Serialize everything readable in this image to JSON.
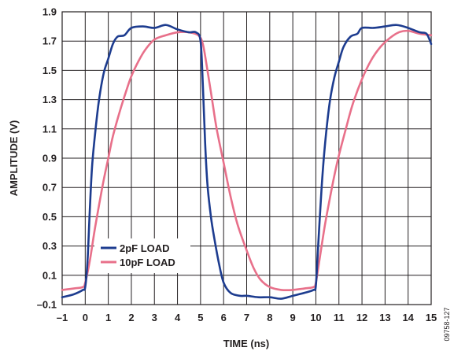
{
  "chart_data": {
    "type": "line",
    "xlabel": "TIME (ns)",
    "ylabel": "AMPLITUDE (V)",
    "xlim": [
      -1,
      15
    ],
    "ylim": [
      -0.1,
      1.9
    ],
    "xticks": [
      "–1",
      "0",
      "1",
      "2",
      "3",
      "4",
      "5",
      "6",
      "7",
      "8",
      "9",
      "10",
      "11",
      "12",
      "13",
      "14",
      "15"
    ],
    "yticks": [
      "–0.1",
      "0.1",
      "0.3",
      "0.5",
      "0.7",
      "0.9",
      "1.1",
      "1.3",
      "1.5",
      "1.7",
      "1.9"
    ],
    "grid": true,
    "legend_position": "bottom-left",
    "series": [
      {
        "name": "2pF LOAD",
        "color": "#1d3c8f",
        "points": [
          [
            -1,
            -0.05
          ],
          [
            -0.5,
            -0.03
          ],
          [
            -0.1,
            0
          ],
          [
            0,
            0.02
          ],
          [
            0.1,
            0.2
          ],
          [
            0.2,
            0.55
          ],
          [
            0.3,
            0.85
          ],
          [
            0.45,
            1.1
          ],
          [
            0.6,
            1.3
          ],
          [
            0.8,
            1.48
          ],
          [
            1,
            1.58
          ],
          [
            1.2,
            1.68
          ],
          [
            1.4,
            1.73
          ],
          [
            1.7,
            1.74
          ],
          [
            2,
            1.79
          ],
          [
            2.5,
            1.8
          ],
          [
            3,
            1.79
          ],
          [
            3.5,
            1.81
          ],
          [
            4,
            1.78
          ],
          [
            4.5,
            1.76
          ],
          [
            4.8,
            1.76
          ],
          [
            5,
            1.7
          ],
          [
            5.1,
            1.4
          ],
          [
            5.2,
            1.0
          ],
          [
            5.3,
            0.72
          ],
          [
            5.45,
            0.5
          ],
          [
            5.6,
            0.35
          ],
          [
            5.8,
            0.18
          ],
          [
            6,
            0.05
          ],
          [
            6.3,
            -0.02
          ],
          [
            6.7,
            -0.04
          ],
          [
            7,
            -0.04
          ],
          [
            7.5,
            -0.05
          ],
          [
            8,
            -0.05
          ],
          [
            8.5,
            -0.06
          ],
          [
            9,
            -0.04
          ],
          [
            9.5,
            -0.02
          ],
          [
            9.9,
            0
          ],
          [
            10,
            0.03
          ],
          [
            10.1,
            0.3
          ],
          [
            10.25,
            0.7
          ],
          [
            10.4,
            1.0
          ],
          [
            10.6,
            1.28
          ],
          [
            10.8,
            1.45
          ],
          [
            11,
            1.56
          ],
          [
            11.2,
            1.66
          ],
          [
            11.5,
            1.73
          ],
          [
            11.8,
            1.75
          ],
          [
            12,
            1.79
          ],
          [
            12.5,
            1.79
          ],
          [
            13,
            1.8
          ],
          [
            13.5,
            1.81
          ],
          [
            14,
            1.79
          ],
          [
            14.5,
            1.76
          ],
          [
            14.8,
            1.75
          ],
          [
            15,
            1.68
          ]
        ]
      },
      {
        "name": "10pF LOAD",
        "color": "#e8708a",
        "points": [
          [
            -1,
            0
          ],
          [
            -0.5,
            0.01
          ],
          [
            -0.1,
            0.02
          ],
          [
            0,
            0.05
          ],
          [
            0.2,
            0.2
          ],
          [
            0.4,
            0.4
          ],
          [
            0.6,
            0.58
          ],
          [
            0.8,
            0.75
          ],
          [
            1,
            0.9
          ],
          [
            1.2,
            1.05
          ],
          [
            1.5,
            1.22
          ],
          [
            1.8,
            1.37
          ],
          [
            2,
            1.46
          ],
          [
            2.3,
            1.56
          ],
          [
            2.6,
            1.64
          ],
          [
            3,
            1.71
          ],
          [
            3.5,
            1.74
          ],
          [
            4,
            1.76
          ],
          [
            4.5,
            1.76
          ],
          [
            4.9,
            1.74
          ],
          [
            5.1,
            1.68
          ],
          [
            5.3,
            1.5
          ],
          [
            5.5,
            1.3
          ],
          [
            5.7,
            1.1
          ],
          [
            6,
            0.87
          ],
          [
            6.3,
            0.64
          ],
          [
            6.6,
            0.45
          ],
          [
            7,
            0.27
          ],
          [
            7.3,
            0.15
          ],
          [
            7.6,
            0.07
          ],
          [
            8,
            0.02
          ],
          [
            8.5,
            0
          ],
          [
            9,
            0
          ],
          [
            9.5,
            0.01
          ],
          [
            9.9,
            0.02
          ],
          [
            10,
            0.05
          ],
          [
            10.2,
            0.25
          ],
          [
            10.4,
            0.45
          ],
          [
            10.6,
            0.62
          ],
          [
            10.8,
            0.78
          ],
          [
            11,
            0.92
          ],
          [
            11.3,
            1.1
          ],
          [
            11.6,
            1.27
          ],
          [
            12,
            1.44
          ],
          [
            12.4,
            1.57
          ],
          [
            12.8,
            1.66
          ],
          [
            13.2,
            1.72
          ],
          [
            13.6,
            1.76
          ],
          [
            14,
            1.77
          ],
          [
            14.5,
            1.75
          ],
          [
            15,
            1.74
          ]
        ]
      }
    ]
  },
  "doc_id": "09758-127"
}
